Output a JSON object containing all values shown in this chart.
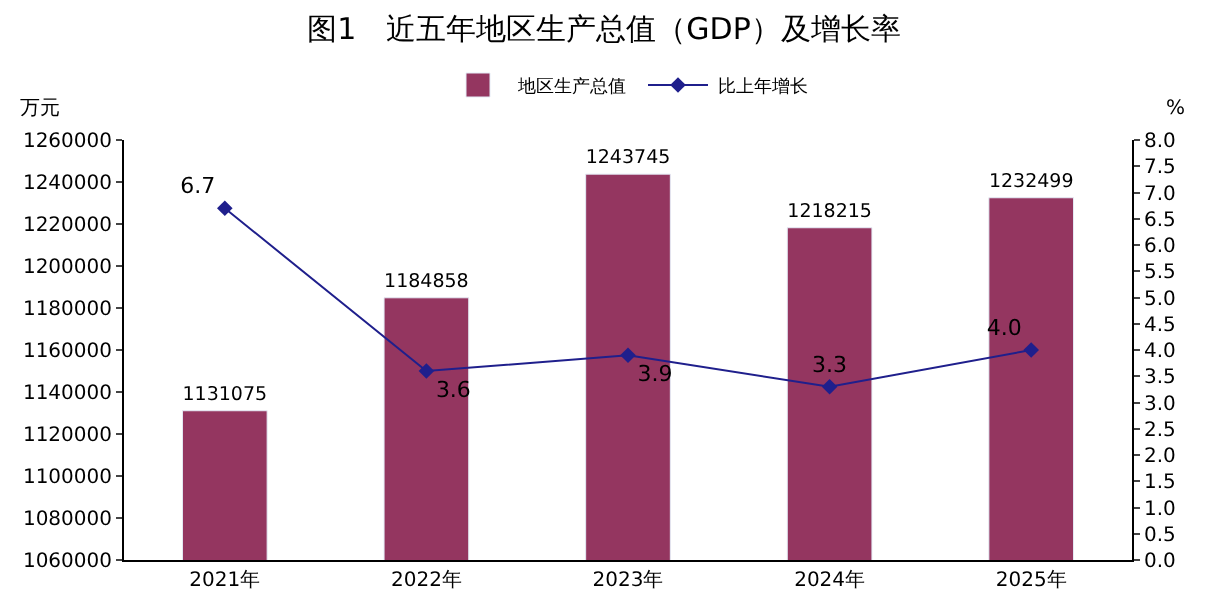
{
  "chart_data": {
    "type": "bar",
    "title": "图1　近五年地区生产总值（GDP）及增长率",
    "ylabel": "万元",
    "y2label": "%",
    "categories": [
      "2021年",
      "2022年",
      "2023年",
      "2024年",
      "2025年"
    ],
    "series": [
      {
        "name": "地区生产总值",
        "color": "#943660",
        "values": [
          1131075,
          1184858,
          1243745,
          1218215,
          1232499
        ]
      },
      {
        "name": "比上年增长",
        "type": "line",
        "axis": "y2",
        "color": "#1f1f8c",
        "marker": "diamond",
        "values": [
          6.7,
          3.6,
          3.9,
          3.3,
          4.0
        ],
        "value_labels": [
          "6.7",
          "3.6",
          "3.9",
          "3.3",
          "4.0"
        ]
      }
    ],
    "data_labels": true,
    "legend": "top",
    "ylim": [
      1060000,
      1260000
    ],
    "yticks": [
      1060000,
      1080000,
      1100000,
      1120000,
      1140000,
      1160000,
      1180000,
      1200000,
      1220000,
      1240000,
      1260000
    ],
    "y2lim": [
      0,
      8
    ],
    "y2ticks": [
      {
        "value": 0,
        "label": "0.0"
      },
      {
        "value": 0.5,
        "label": "0.5"
      },
      {
        "value": 1,
        "label": "1.0"
      },
      {
        "value": 1.5,
        "label": "1.5"
      },
      {
        "value": 2,
        "label": "2.0"
      },
      {
        "value": 2.5,
        "label": "2.5"
      },
      {
        "value": 3,
        "label": "3.0"
      },
      {
        "value": 3.5,
        "label": "3.5"
      },
      {
        "value": 4,
        "label": "4.0"
      },
      {
        "value": 4.5,
        "label": "4.5"
      },
      {
        "value": 5,
        "label": "5.0"
      },
      {
        "value": 5.5,
        "label": "5.5"
      },
      {
        "value": 6,
        "label": "6.0"
      },
      {
        "value": 6.5,
        "label": "6.5"
      },
      {
        "value": 7,
        "label": "7.0"
      },
      {
        "value": 7.5,
        "label": "7.5"
      },
      {
        "value": 8,
        "label": "8.0"
      }
    ]
  }
}
